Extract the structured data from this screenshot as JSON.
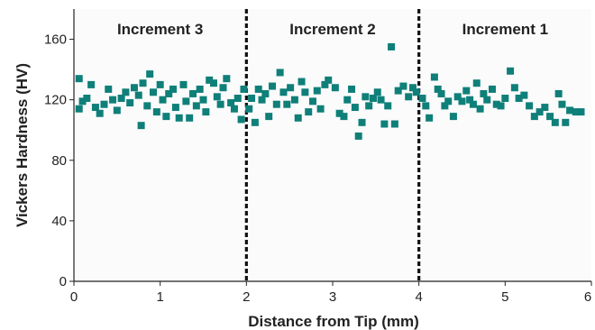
{
  "chart_data": {
    "type": "scatter",
    "xlabel": "Distance from Tip (mm)",
    "ylabel": "Vickers Hardness (HV)",
    "xlim": [
      0,
      6
    ],
    "ylim": [
      0,
      180
    ],
    "xticks": [
      0,
      1,
      2,
      3,
      4,
      5,
      6
    ],
    "xtick_labels": [
      "0",
      "1",
      "2",
      "3",
      "4",
      "5",
      "6"
    ],
    "yticks": [
      0,
      40,
      80,
      120,
      160
    ],
    "ytick_labels": [
      "0",
      "40",
      "80",
      "120",
      "160"
    ],
    "marker_color": "#0f7f79",
    "divider_lines_x": [
      2,
      4
    ],
    "regions": [
      {
        "label": "Increment 3",
        "x_center": 1.0
      },
      {
        "label": "Increment 2",
        "x_center": 3.0
      },
      {
        "label": "Increment 1",
        "x_center": 5.0
      }
    ],
    "points": [
      [
        0.06,
        134
      ],
      [
        0.06,
        114
      ],
      [
        0.1,
        119
      ],
      [
        0.15,
        121
      ],
      [
        0.2,
        130
      ],
      [
        0.25,
        115
      ],
      [
        0.3,
        111
      ],
      [
        0.35,
        117
      ],
      [
        0.4,
        127
      ],
      [
        0.45,
        120
      ],
      [
        0.5,
        113
      ],
      [
        0.55,
        121
      ],
      [
        0.6,
        125
      ],
      [
        0.65,
        118
      ],
      [
        0.7,
        128
      ],
      [
        0.75,
        123
      ],
      [
        0.78,
        103
      ],
      [
        0.8,
        131
      ],
      [
        0.85,
        116
      ],
      [
        0.88,
        137
      ],
      [
        0.92,
        125
      ],
      [
        0.96,
        112
      ],
      [
        1.0,
        130
      ],
      [
        1.03,
        120
      ],
      [
        1.07,
        109
      ],
      [
        1.1,
        124
      ],
      [
        1.15,
        127
      ],
      [
        1.18,
        115
      ],
      [
        1.22,
        108
      ],
      [
        1.27,
        130
      ],
      [
        1.3,
        119
      ],
      [
        1.34,
        108
      ],
      [
        1.38,
        124
      ],
      [
        1.42,
        116
      ],
      [
        1.46,
        127
      ],
      [
        1.5,
        120
      ],
      [
        1.53,
        112
      ],
      [
        1.57,
        133
      ],
      [
        1.62,
        131
      ],
      [
        1.66,
        122
      ],
      [
        1.7,
        117
      ],
      [
        1.73,
        128
      ],
      [
        1.77,
        134
      ],
      [
        1.82,
        118
      ],
      [
        1.86,
        114
      ],
      [
        1.9,
        121
      ],
      [
        1.94,
        107
      ],
      [
        1.97,
        127
      ],
      [
        2.03,
        114
      ],
      [
        2.06,
        121
      ],
      [
        2.1,
        105
      ],
      [
        2.14,
        127
      ],
      [
        2.18,
        120
      ],
      [
        2.22,
        124
      ],
      [
        2.26,
        109
      ],
      [
        2.3,
        129
      ],
      [
        2.35,
        117
      ],
      [
        2.39,
        138
      ],
      [
        2.43,
        125
      ],
      [
        2.47,
        117
      ],
      [
        2.51,
        128
      ],
      [
        2.56,
        120
      ],
      [
        2.6,
        108
      ],
      [
        2.64,
        132
      ],
      [
        2.68,
        125
      ],
      [
        2.72,
        112
      ],
      [
        2.77,
        119
      ],
      [
        2.82,
        126
      ],
      [
        2.86,
        114
      ],
      [
        2.91,
        130
      ],
      [
        2.95,
        133
      ],
      [
        3.03,
        128
      ],
      [
        3.08,
        111
      ],
      [
        3.13,
        109
      ],
      [
        3.17,
        120
      ],
      [
        3.22,
        127
      ],
      [
        3.26,
        115
      ],
      [
        3.3,
        96
      ],
      [
        3.34,
        105
      ],
      [
        3.38,
        122
      ],
      [
        3.42,
        116
      ],
      [
        3.47,
        121
      ],
      [
        3.52,
        125
      ],
      [
        3.56,
        120
      ],
      [
        3.6,
        104
      ],
      [
        3.64,
        116
      ],
      [
        3.68,
        155
      ],
      [
        3.72,
        104
      ],
      [
        3.76,
        126
      ],
      [
        3.82,
        129
      ],
      [
        3.88,
        122
      ],
      [
        3.93,
        128
      ],
      [
        3.97,
        125
      ],
      [
        4.04,
        121
      ],
      [
        4.08,
        116
      ],
      [
        4.12,
        108
      ],
      [
        4.18,
        135
      ],
      [
        4.22,
        127
      ],
      [
        4.26,
        124
      ],
      [
        4.3,
        116
      ],
      [
        4.34,
        119
      ],
      [
        4.4,
        109
      ],
      [
        4.45,
        122
      ],
      [
        4.5,
        119
      ],
      [
        4.55,
        126
      ],
      [
        4.59,
        120
      ],
      [
        4.63,
        117
      ],
      [
        4.67,
        131
      ],
      [
        4.71,
        114
      ],
      [
        4.75,
        124
      ],
      [
        4.79,
        120
      ],
      [
        4.85,
        127
      ],
      [
        4.9,
        117
      ],
      [
        4.95,
        116
      ],
      [
        5.0,
        121
      ],
      [
        5.06,
        139
      ],
      [
        5.11,
        128
      ],
      [
        5.16,
        121
      ],
      [
        5.22,
        123
      ],
      [
        5.28,
        116
      ],
      [
        5.34,
        109
      ],
      [
        5.4,
        112
      ],
      [
        5.46,
        115
      ],
      [
        5.52,
        109
      ],
      [
        5.58,
        105
      ],
      [
        5.62,
        124
      ],
      [
        5.66,
        117
      ],
      [
        5.7,
        105
      ],
      [
        5.75,
        113
      ],
      [
        5.82,
        112
      ],
      [
        5.88,
        112
      ]
    ]
  }
}
